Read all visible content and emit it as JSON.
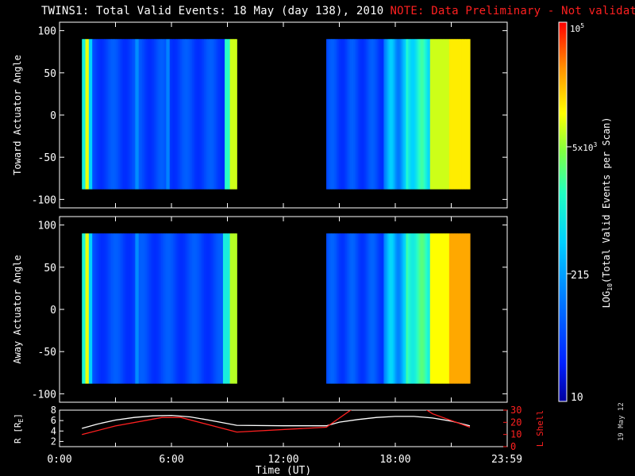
{
  "title": "TWINS1: Total Valid Events: 18 May (day 138), 2010",
  "note": "NOTE: Data Preliminary - Not validated",
  "date_stamp": "19 May 12",
  "colors": {
    "note": "#ff2020",
    "panel_border": "#ffffff",
    "background": "#000000",
    "r_line": "#ffffff",
    "l_shell_line": "#ff2020"
  },
  "chart_data": [
    {
      "type": "heatmap",
      "ylabel": "Toward Actuator Angle",
      "ylim": [
        -110,
        110
      ],
      "yticks": [
        100,
        50,
        0,
        -50,
        -100
      ],
      "xlim": [
        0,
        24
      ],
      "data_blocks": [
        {
          "x_start": 1.2,
          "x_end": 9.5,
          "y_start": -88,
          "y_end": 90,
          "profile": "block1_toward"
        },
        {
          "x_start": 14.3,
          "x_end": 22.0,
          "y_start": -88,
          "y_end": 90,
          "profile": "block2_toward"
        }
      ]
    },
    {
      "type": "heatmap",
      "ylabel": "Away Actuator Angle",
      "ylim": [
        -110,
        110
      ],
      "yticks": [
        100,
        50,
        0,
        -50,
        -100
      ],
      "xlim": [
        0,
        24
      ],
      "data_blocks": [
        {
          "x_start": 1.2,
          "x_end": 9.5,
          "y_start": -88,
          "y_end": 90,
          "profile": "block1_away"
        },
        {
          "x_start": 14.3,
          "x_end": 22.0,
          "y_start": -88,
          "y_end": 90,
          "profile": "block2_away"
        }
      ]
    },
    {
      "type": "line",
      "xlabel": "Time (UT)",
      "xticks": [
        "0:00",
        "6:00",
        "12:00",
        "18:00",
        "23:59"
      ],
      "xtick_hours": [
        0,
        6,
        12,
        18,
        23.98
      ],
      "xlim": [
        0,
        24
      ],
      "left_axis": {
        "label": "R [RE]",
        "label_main": "R [R",
        "label_sub": "E",
        "label_end": "]",
        "ylim": [
          1,
          8
        ],
        "yticks": [
          2,
          4,
          6,
          8
        ]
      },
      "right_axis": {
        "label": "L Shell",
        "ylim": [
          0,
          30
        ],
        "yticks": [
          0,
          10,
          20,
          30
        ]
      },
      "series": [
        {
          "key": "R",
          "color": "#ffffff",
          "axis": "left",
          "x": [
            1.2,
            2.0,
            3.0,
            4.0,
            5.0,
            6.0,
            7.0,
            8.0,
            9.5,
            12.0,
            14.3,
            15.0,
            16.0,
            17.0,
            18.0,
            19.0,
            20.0,
            21.0,
            22.0
          ],
          "y": [
            4.5,
            5.3,
            6.1,
            6.6,
            6.9,
            7.0,
            6.7,
            6.1,
            5.1,
            5.0,
            5.0,
            5.7,
            6.2,
            6.6,
            6.8,
            6.8,
            6.5,
            5.9,
            5.0
          ]
        },
        {
          "key": "L",
          "color": "#ff2020",
          "axis": "right",
          "x": [
            1.2,
            3.0,
            5.5,
            6.5,
            9.5,
            14.3,
            15.7,
            16.0
          ],
          "y": [
            10,
            17,
            24,
            24,
            12,
            16,
            31,
            31
          ],
          "x2": [
            19.6,
            20.0,
            22.0
          ],
          "y2": [
            31,
            27,
            16
          ]
        }
      ]
    }
  ],
  "colorbar": {
    "label_main": "LOG",
    "label_sub": "10",
    "label_rest": "(Total Valid Events per Scan)",
    "label": "LOG10(Total Valid Events per Scan)",
    "tick_10": "10",
    "tick_215": "215",
    "tick_5k": "5x10",
    "tick_5k_exp": "3",
    "tick_top": "10",
    "tick_top_exp": "5",
    "min": 10,
    "max": 100000
  }
}
